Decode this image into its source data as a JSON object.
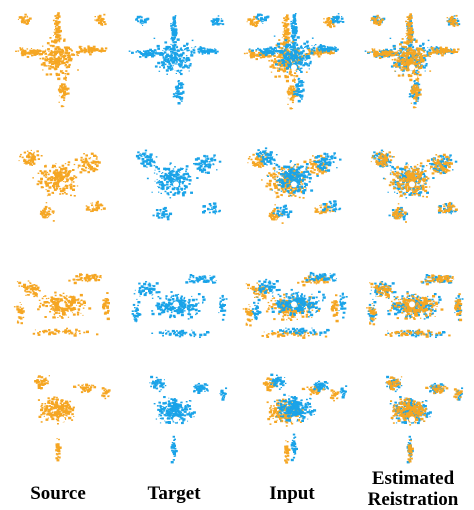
{
  "figure": {
    "rows": 4,
    "columns": [
      {
        "key": "source",
        "label": "Source",
        "mode": "source"
      },
      {
        "key": "target",
        "label": "Target",
        "mode": "target"
      },
      {
        "key": "input",
        "label": "Input",
        "mode": "both"
      },
      {
        "key": "estimated",
        "label": "Estimated\nReistration",
        "mode": "both-aligned"
      }
    ],
    "colors": {
      "source": "#f5a623",
      "target": "#1aa3e8",
      "background": "#ffffff"
    },
    "panel_icon": "lidar-point-cloud-scan"
  }
}
